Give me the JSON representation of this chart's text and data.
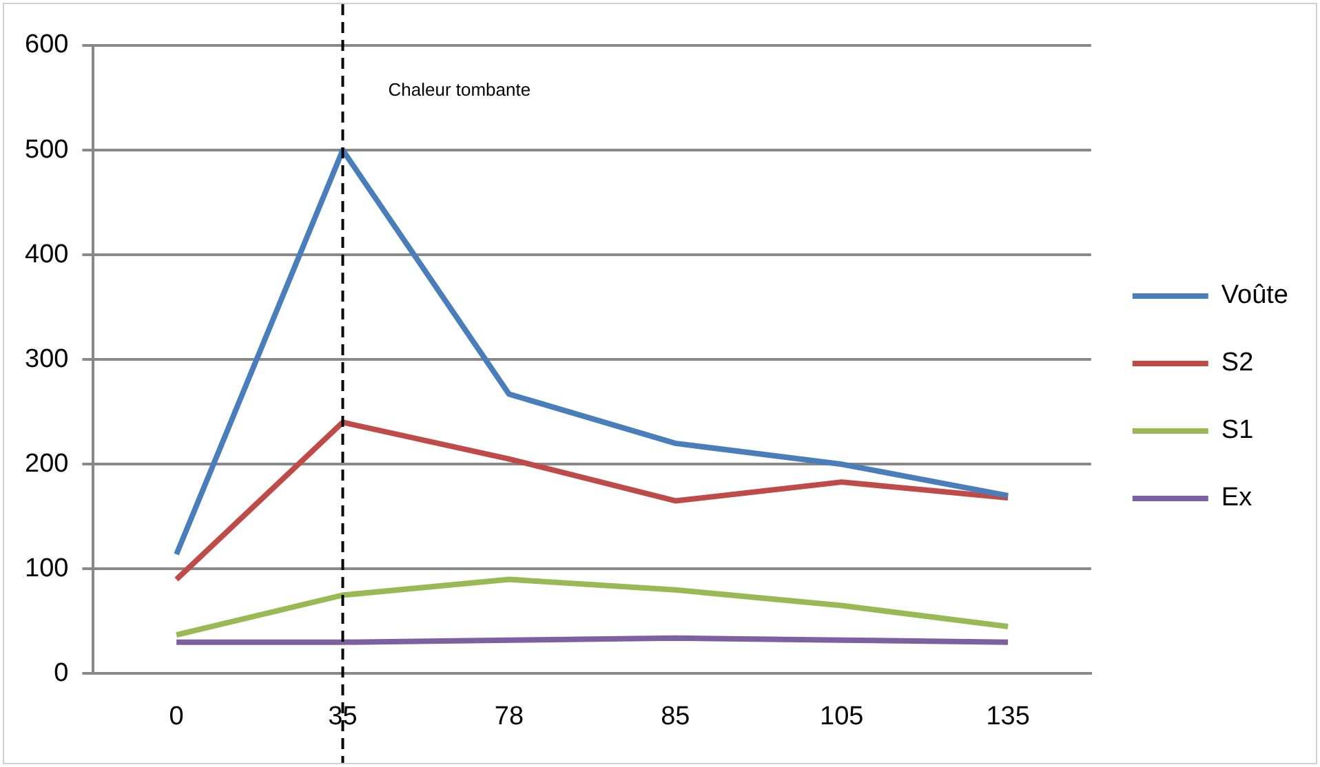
{
  "chart_data": {
    "type": "line",
    "categories": [
      "0",
      "35",
      "78",
      "85",
      "105",
      "135"
    ],
    "series": [
      {
        "name": "Voûte",
        "color": "#4a7ebb",
        "values": [
          114,
          500,
          267,
          220,
          200,
          170
        ]
      },
      {
        "name": "S2",
        "color": "#be4b48",
        "values": [
          90,
          240,
          205,
          165,
          183,
          168
        ]
      },
      {
        "name": "S1",
        "color": "#98b954",
        "values": [
          37,
          75,
          90,
          80,
          65,
          45
        ]
      },
      {
        "name": "Ex",
        "color": "#7d60a0",
        "values": [
          30,
          30,
          32,
          34,
          32,
          30
        ]
      }
    ],
    "ylim": [
      0,
      600
    ],
    "yticks": [
      0,
      100,
      200,
      300,
      400,
      500,
      600
    ],
    "grid": "y",
    "legend": "right",
    "marker": "none",
    "line_style": "solid",
    "ref_lines": [
      {
        "axis": "x",
        "value": "35",
        "label": "Chaleur tombante",
        "color": "#000000",
        "line_style": "dashed"
      }
    ]
  }
}
